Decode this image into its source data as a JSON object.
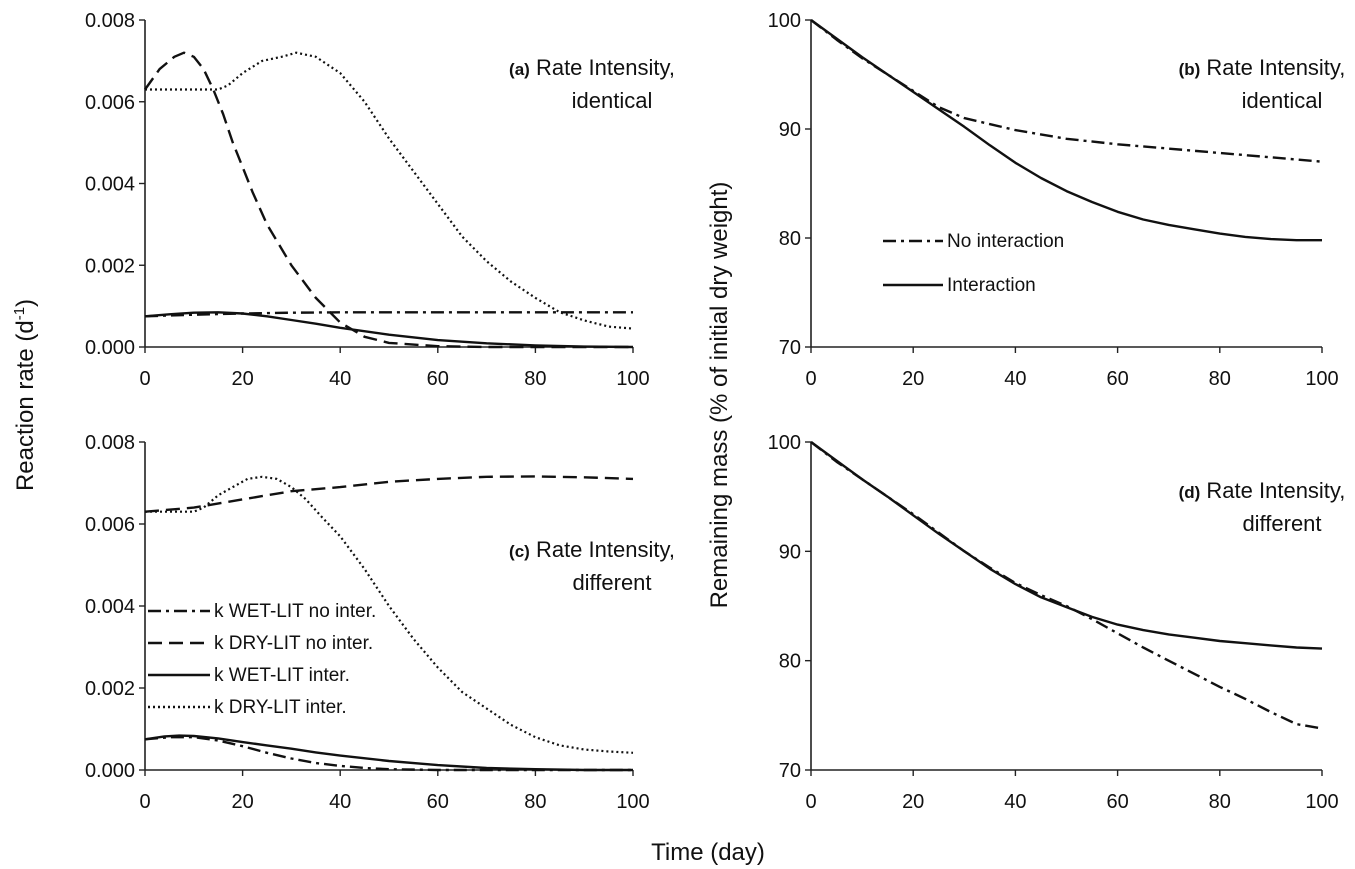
{
  "figure": {
    "shared_xlabel": "Time (day)",
    "left_ylabel": "Reaction rate (d",
    "left_ylabel_sup": "-1",
    "left_ylabel_end": ")",
    "right_ylabel": "Remaining mass  (% of initial dry weight)"
  },
  "chart_data": [
    {
      "type": "line",
      "panel_id": "a",
      "annotation_tag": "(a)",
      "annotation_line1": "Rate Intensity,",
      "annotation_line2": "identical",
      "xlim": [
        0,
        100
      ],
      "ylim": [
        0,
        0.008
      ],
      "x_ticks": [
        "0",
        "20",
        "40",
        "60",
        "80",
        "100"
      ],
      "y_ticks": [
        "0.000",
        "0.002",
        "0.004",
        "0.006",
        "0.008"
      ],
      "series": [
        {
          "style": "dashdot",
          "points": [
            [
              0,
              0.00075
            ],
            [
              10,
              0.00079
            ],
            [
              20,
              0.00082
            ],
            [
              30,
              0.00084
            ],
            [
              40,
              0.00085
            ],
            [
              60,
              0.00085
            ],
            [
              80,
              0.00085
            ],
            [
              100,
              0.00085
            ]
          ]
        },
        {
          "style": "dashed",
          "points": [
            [
              0,
              0.0063
            ],
            [
              3,
              0.0068
            ],
            [
              6,
              0.0071
            ],
            [
              8,
              0.0072
            ],
            [
              10,
              0.0071
            ],
            [
              12,
              0.0068
            ],
            [
              14,
              0.0063
            ],
            [
              16,
              0.0057
            ],
            [
              18,
              0.005
            ],
            [
              20,
              0.0044
            ],
            [
              22,
              0.0038
            ],
            [
              25,
              0.003
            ],
            [
              30,
              0.002
            ],
            [
              35,
              0.0012
            ],
            [
              40,
              0.0006
            ],
            [
              45,
              0.00025
            ],
            [
              50,
              0.0001
            ],
            [
              60,
              2e-05
            ],
            [
              70,
              0.0
            ],
            [
              100,
              0.0
            ]
          ]
        },
        {
          "style": "solid",
          "points": [
            [
              0,
              0.00075
            ],
            [
              5,
              0.0008
            ],
            [
              10,
              0.00084
            ],
            [
              15,
              0.00085
            ],
            [
              20,
              0.00082
            ],
            [
              25,
              0.00075
            ],
            [
              30,
              0.00066
            ],
            [
              35,
              0.00057
            ],
            [
              40,
              0.00047
            ],
            [
              50,
              0.0003
            ],
            [
              60,
              0.00017
            ],
            [
              70,
              9e-05
            ],
            [
              80,
              4e-05
            ],
            [
              90,
              1e-05
            ],
            [
              100,
              0.0
            ]
          ]
        },
        {
          "style": "dotted",
          "points": [
            [
              0,
              0.0063
            ],
            [
              15,
              0.0063
            ],
            [
              17,
              0.0064
            ],
            [
              20,
              0.0067
            ],
            [
              24,
              0.007
            ],
            [
              28,
              0.0071
            ],
            [
              31,
              0.0072
            ],
            [
              35,
              0.0071
            ],
            [
              40,
              0.0067
            ],
            [
              45,
              0.006
            ],
            [
              50,
              0.0051
            ],
            [
              55,
              0.0043
            ],
            [
              60,
              0.0035
            ],
            [
              65,
              0.0027
            ],
            [
              70,
              0.0021
            ],
            [
              75,
              0.0016
            ],
            [
              80,
              0.0012
            ],
            [
              85,
              0.00085
            ],
            [
              90,
              0.00065
            ],
            [
              95,
              0.0005
            ],
            [
              100,
              0.00045
            ]
          ]
        }
      ]
    },
    {
      "type": "line",
      "panel_id": "b",
      "annotation_tag": "(b)",
      "annotation_line1": "Rate Intensity,",
      "annotation_line2": "identical",
      "xlim": [
        0,
        100
      ],
      "ylim": [
        70,
        100
      ],
      "x_ticks": [
        "0",
        "20",
        "40",
        "60",
        "80",
        "100"
      ],
      "y_ticks": [
        "70",
        "80",
        "90",
        "100"
      ],
      "legend": [
        {
          "label": "No interaction",
          "style": "dashdot"
        },
        {
          "label": "Interaction",
          "style": "solid"
        }
      ],
      "series": [
        {
          "name": "No interaction",
          "style": "dashdot",
          "points": [
            [
              0,
              100
            ],
            [
              5,
              98.2
            ],
            [
              10,
              96.5
            ],
            [
              15,
              95
            ],
            [
              20,
              93.5
            ],
            [
              25,
              92
            ],
            [
              30,
              91
            ],
            [
              40,
              89.9
            ],
            [
              50,
              89.1
            ],
            [
              60,
              88.6
            ],
            [
              70,
              88.2
            ],
            [
              80,
              87.8
            ],
            [
              90,
              87.4
            ],
            [
              100,
              87
            ]
          ]
        },
        {
          "name": "Interaction",
          "style": "solid",
          "points": [
            [
              0,
              100
            ],
            [
              5,
              98.3
            ],
            [
              10,
              96.6
            ],
            [
              15,
              95
            ],
            [
              20,
              93.4
            ],
            [
              25,
              91.8
            ],
            [
              30,
              90.2
            ],
            [
              35,
              88.5
            ],
            [
              40,
              86.9
            ],
            [
              45,
              85.5
            ],
            [
              50,
              84.3
            ],
            [
              55,
              83.3
            ],
            [
              60,
              82.4
            ],
            [
              65,
              81.7
            ],
            [
              70,
              81.2
            ],
            [
              75,
              80.8
            ],
            [
              80,
              80.4
            ],
            [
              85,
              80.1
            ],
            [
              90,
              79.9
            ],
            [
              95,
              79.8
            ],
            [
              100,
              79.8
            ]
          ]
        }
      ]
    },
    {
      "type": "line",
      "panel_id": "c",
      "annotation_tag": "(c)",
      "annotation_line1": "Rate Intensity,",
      "annotation_line2": "different",
      "xlim": [
        0,
        100
      ],
      "ylim": [
        0,
        0.008
      ],
      "x_ticks": [
        "0",
        "20",
        "40",
        "60",
        "80",
        "100"
      ],
      "y_ticks": [
        "0.000",
        "0.002",
        "0.004",
        "0.006",
        "0.008"
      ],
      "legend": [
        {
          "label": "k WET-LIT no inter.",
          "style": "dashdot"
        },
        {
          "label": "k DRY-LIT no inter.",
          "style": "dashed"
        },
        {
          "label": "k WET-LIT inter.",
          "style": "solid"
        },
        {
          "label": "k DRY-LIT inter.",
          "style": "dotted"
        }
      ],
      "series": [
        {
          "name": "k WET-LIT no inter.",
          "style": "dashdot",
          "points": [
            [
              0,
              0.00075
            ],
            [
              5,
              0.0008
            ],
            [
              10,
              0.0008
            ],
            [
              15,
              0.00072
            ],
            [
              20,
              0.00058
            ],
            [
              25,
              0.00042
            ],
            [
              30,
              0.00028
            ],
            [
              35,
              0.00017
            ],
            [
              40,
              0.0001
            ],
            [
              45,
              5e-05
            ],
            [
              50,
              2e-05
            ],
            [
              60,
              0.0
            ],
            [
              100,
              0.0
            ]
          ]
        },
        {
          "name": "k DRY-LIT no inter.",
          "style": "dashed",
          "points": [
            [
              0,
              0.0063
            ],
            [
              10,
              0.0064
            ],
            [
              20,
              0.0066
            ],
            [
              30,
              0.0068
            ],
            [
              40,
              0.0069
            ],
            [
              50,
              0.00703
            ],
            [
              60,
              0.0071
            ],
            [
              70,
              0.00715
            ],
            [
              80,
              0.00716
            ],
            [
              90,
              0.00714
            ],
            [
              100,
              0.0071
            ]
          ]
        },
        {
          "name": "k WET-LIT inter.",
          "style": "solid",
          "points": [
            [
              0,
              0.00075
            ],
            [
              4,
              0.00082
            ],
            [
              7,
              0.00084
            ],
            [
              10,
              0.00083
            ],
            [
              15,
              0.00077
            ],
            [
              20,
              0.00068
            ],
            [
              25,
              0.0006
            ],
            [
              30,
              0.00052
            ],
            [
              35,
              0.00043
            ],
            [
              40,
              0.00035
            ],
            [
              50,
              0.00022
            ],
            [
              60,
              0.00012
            ],
            [
              70,
              5e-05
            ],
            [
              80,
              2e-05
            ],
            [
              90,
              0.0
            ],
            [
              100,
              0.0
            ]
          ]
        },
        {
          "name": "k DRY-LIT inter.",
          "style": "dotted",
          "points": [
            [
              0,
              0.0063
            ],
            [
              10,
              0.0063
            ],
            [
              12,
              0.0064
            ],
            [
              15,
              0.0067
            ],
            [
              18,
              0.0069
            ],
            [
              21,
              0.0071
            ],
            [
              24,
              0.00715
            ],
            [
              27,
              0.0071
            ],
            [
              30,
              0.0069
            ],
            [
              33,
              0.0066
            ],
            [
              36,
              0.0062
            ],
            [
              40,
              0.0057
            ],
            [
              45,
              0.0049
            ],
            [
              50,
              0.004
            ],
            [
              55,
              0.0032
            ],
            [
              60,
              0.0025
            ],
            [
              65,
              0.0019
            ],
            [
              70,
              0.0015
            ],
            [
              75,
              0.0011
            ],
            [
              80,
              0.0008
            ],
            [
              85,
              0.0006
            ],
            [
              90,
              0.0005
            ],
            [
              95,
              0.00045
            ],
            [
              100,
              0.00042
            ]
          ]
        }
      ]
    },
    {
      "type": "line",
      "panel_id": "d",
      "annotation_tag": "(d)",
      "annotation_line1": "Rate Intensity,",
      "annotation_line2": "different",
      "xlim": [
        0,
        100
      ],
      "ylim": [
        70,
        100
      ],
      "x_ticks": [
        "0",
        "20",
        "40",
        "60",
        "80",
        "100"
      ],
      "y_ticks": [
        "70",
        "80",
        "90",
        "100"
      ],
      "series": [
        {
          "name": "No interaction",
          "style": "dashdot",
          "points": [
            [
              0,
              100
            ],
            [
              5,
              98.2
            ],
            [
              10,
              96.6
            ],
            [
              15,
              95
            ],
            [
              20,
              93.4
            ],
            [
              25,
              91.7
            ],
            [
              30,
              90
            ],
            [
              35,
              88.5
            ],
            [
              40,
              87.1
            ],
            [
              45,
              86
            ],
            [
              50,
              85
            ],
            [
              55,
              83.8
            ],
            [
              60,
              82.5
            ],
            [
              65,
              81.2
            ],
            [
              70,
              80
            ],
            [
              75,
              78.8
            ],
            [
              80,
              77.6
            ],
            [
              85,
              76.5
            ],
            [
              90,
              75.3
            ],
            [
              95,
              74.2
            ],
            [
              100,
              73.8
            ]
          ]
        },
        {
          "name": "Interaction",
          "style": "solid",
          "points": [
            [
              0,
              100
            ],
            [
              5,
              98.3
            ],
            [
              10,
              96.6
            ],
            [
              15,
              95
            ],
            [
              20,
              93.3
            ],
            [
              25,
              91.6
            ],
            [
              30,
              90
            ],
            [
              35,
              88.4
            ],
            [
              40,
              87
            ],
            [
              45,
              85.8
            ],
            [
              50,
              84.9
            ],
            [
              55,
              84
            ],
            [
              60,
              83.3
            ],
            [
              65,
              82.8
            ],
            [
              70,
              82.4
            ],
            [
              75,
              82.1
            ],
            [
              80,
              81.8
            ],
            [
              85,
              81.6
            ],
            [
              90,
              81.4
            ],
            [
              95,
              81.2
            ],
            [
              100,
              81.1
            ]
          ]
        }
      ]
    }
  ]
}
